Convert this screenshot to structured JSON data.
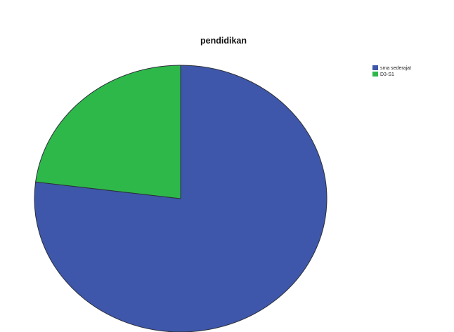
{
  "chart_data": {
    "type": "pie",
    "title": "pendidikan",
    "slices": [
      {
        "label": "sma sederajat",
        "value": 77,
        "color": "#3e57ab"
      },
      {
        "label": "D3-S1",
        "value": 23,
        "color": "#2eb84a"
      }
    ],
    "start": "12 o'clock",
    "direction": "clockwise",
    "legend_position": "top-right"
  }
}
